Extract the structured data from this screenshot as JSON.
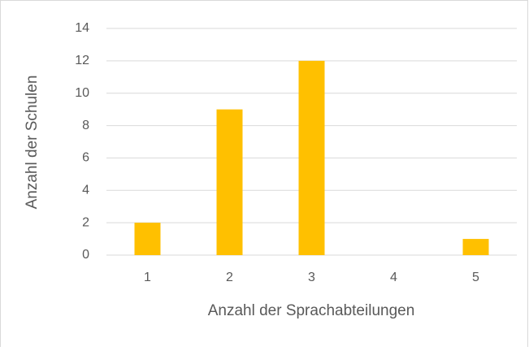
{
  "chart_data": {
    "type": "bar",
    "x_label": "Anzahl der Sprachabteilungen",
    "y_label": "Anzahl der Schulen",
    "categories": [
      "1",
      "2",
      "3",
      "4",
      "5"
    ],
    "values": [
      2,
      9,
      12,
      0,
      1
    ],
    "color": "#ffc000",
    "ylim": [
      0,
      14
    ],
    "yticks": [
      0,
      2,
      4,
      6,
      8,
      10,
      12,
      14
    ],
    "grid": true
  }
}
